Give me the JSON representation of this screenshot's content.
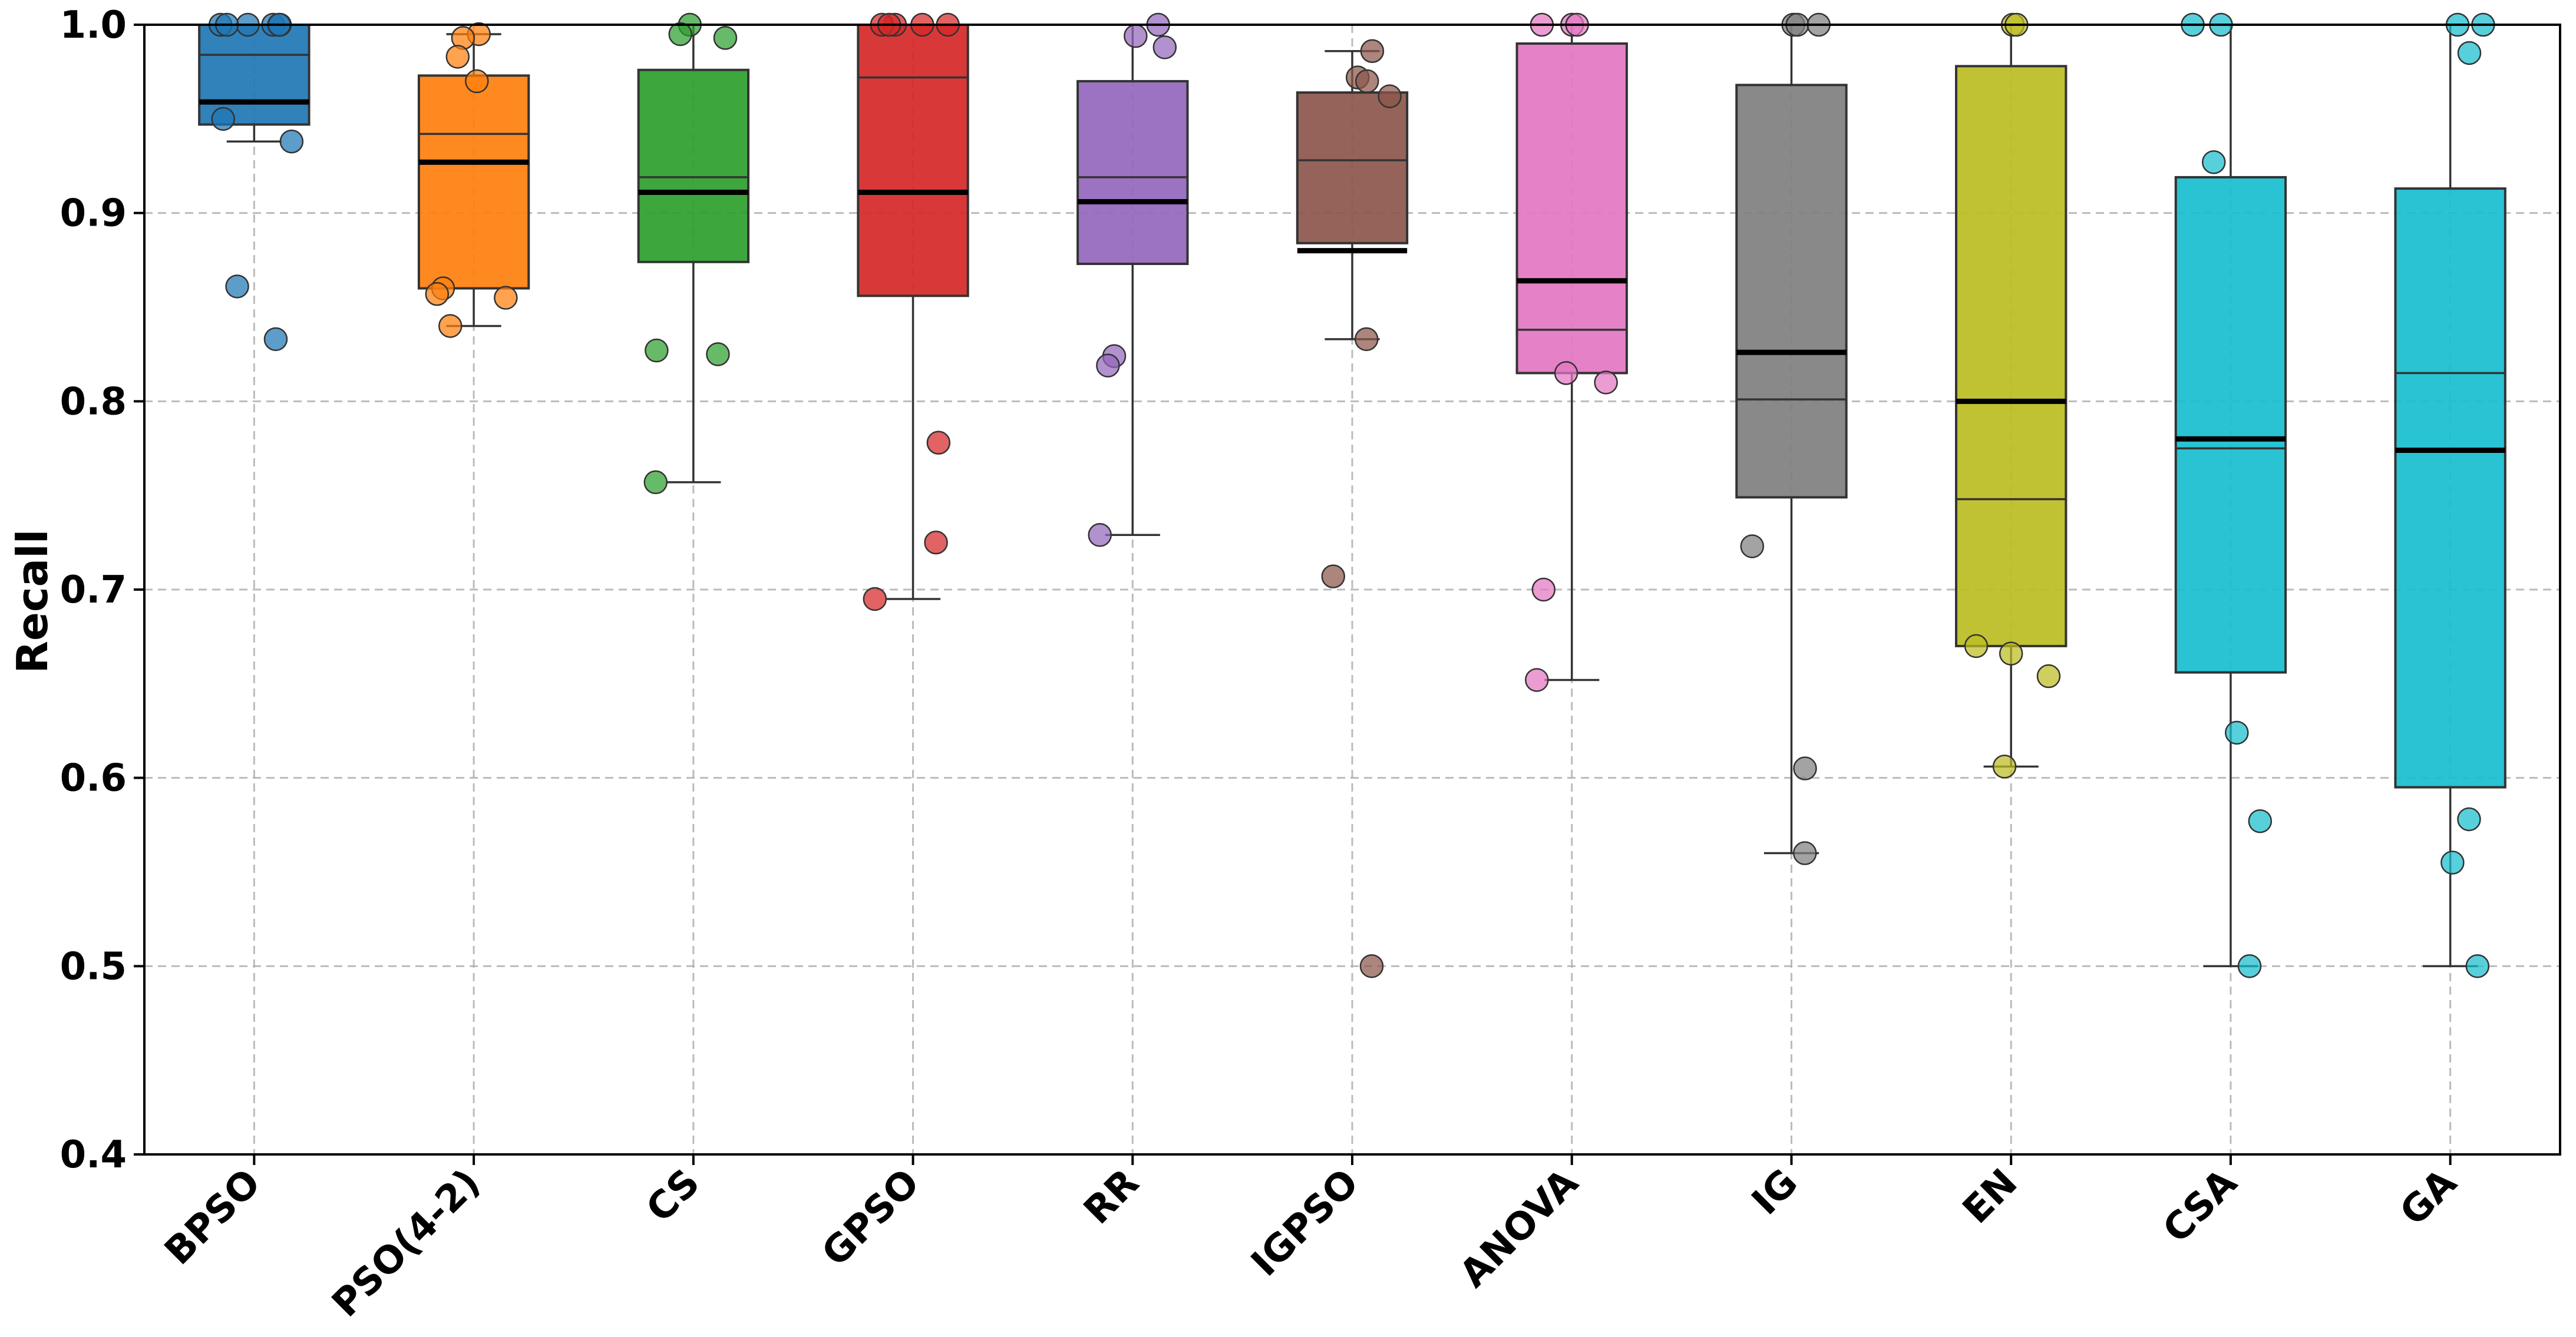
{
  "chart_data": {
    "type": "box",
    "title": "",
    "xlabel": "",
    "ylabel": "Recall",
    "ylim": [
      0.4,
      1.0
    ],
    "yticks": [
      "0.4",
      "0.5",
      "0.6",
      "0.7",
      "0.8",
      "0.9",
      "1.0"
    ],
    "grid": true,
    "series": [
      {
        "name": "BPSO",
        "color": "#1f77b4",
        "q1": 0.947,
        "median": 0.984,
        "q3": 1.0,
        "mean": 0.959,
        "whisker_low": 0.938,
        "whisker_high": 1.0,
        "points": [
          1.0,
          1.0,
          1.0,
          1.0,
          1.0,
          1.0,
          0.95,
          0.938,
          0.861,
          0.833
        ]
      },
      {
        "name": "PSO(4-2)",
        "color": "#ff7f0e",
        "q1": 0.86,
        "median": 0.942,
        "q3": 0.973,
        "mean": 0.927,
        "whisker_low": 0.84,
        "whisker_high": 0.995,
        "points": [
          0.995,
          0.993,
          0.983,
          0.97,
          0.86,
          0.857,
          0.855,
          0.84
        ]
      },
      {
        "name": "CS",
        "color": "#2ca02c",
        "q1": 0.874,
        "median": 0.919,
        "q3": 0.976,
        "mean": 0.911,
        "whisker_low": 0.757,
        "whisker_high": 1.0,
        "points": [
          1.0,
          0.995,
          0.993,
          0.827,
          0.825,
          0.757
        ]
      },
      {
        "name": "GPSO",
        "color": "#d62728",
        "q1": 0.856,
        "median": 0.972,
        "q3": 1.0,
        "mean": 0.911,
        "whisker_low": 0.695,
        "whisker_high": 1.0,
        "points": [
          1.0,
          1.0,
          1.0,
          1.0,
          1.0,
          0.778,
          0.725,
          0.695
        ]
      },
      {
        "name": "RR",
        "color": "#9467bd",
        "q1": 0.873,
        "median": 0.919,
        "q3": 0.97,
        "mean": 0.906,
        "whisker_low": 0.729,
        "whisker_high": 1.0,
        "points": [
          1.0,
          0.994,
          0.988,
          0.824,
          0.819,
          0.729
        ]
      },
      {
        "name": "IGPSO",
        "color": "#8c564b",
        "q1": 0.884,
        "median": 0.928,
        "q3": 0.964,
        "mean": 0.88,
        "whisker_low": 0.833,
        "whisker_high": 0.986,
        "points": [
          0.986,
          0.972,
          0.97,
          0.962,
          0.833,
          0.707,
          0.5
        ]
      },
      {
        "name": "ANOVA",
        "color": "#e377c2",
        "q1": 0.815,
        "median": 0.838,
        "q3": 0.99,
        "mean": 0.864,
        "whisker_low": 0.652,
        "whisker_high": 1.0,
        "points": [
          1.0,
          1.0,
          1.0,
          0.815,
          0.81,
          0.7,
          0.652
        ]
      },
      {
        "name": "IG",
        "color": "#7f7f7f",
        "q1": 0.749,
        "median": 0.801,
        "q3": 0.968,
        "mean": 0.826,
        "whisker_low": 0.56,
        "whisker_high": 1.0,
        "points": [
          1.0,
          1.0,
          1.0,
          0.723,
          0.605,
          0.56
        ]
      },
      {
        "name": "EN",
        "color": "#bcbd22",
        "q1": 0.67,
        "median": 0.748,
        "q3": 0.978,
        "mean": 0.8,
        "whisker_low": 0.606,
        "whisker_high": 1.0,
        "points": [
          1.0,
          1.0,
          0.67,
          0.666,
          0.654,
          0.606
        ]
      },
      {
        "name": "CSA",
        "color": "#17becf",
        "q1": 0.656,
        "median": 0.775,
        "q3": 0.919,
        "mean": 0.78,
        "whisker_low": 0.5,
        "whisker_high": 1.0,
        "points": [
          1.0,
          1.0,
          0.927,
          0.624,
          0.577,
          0.5
        ]
      },
      {
        "name": "GA",
        "color": "#17becf",
        "q1": 0.595,
        "median": 0.815,
        "q3": 0.913,
        "mean": 0.774,
        "whisker_low": 0.5,
        "whisker_high": 1.0,
        "points": [
          1.0,
          1.0,
          0.985,
          0.578,
          0.555,
          0.5
        ]
      }
    ]
  }
}
